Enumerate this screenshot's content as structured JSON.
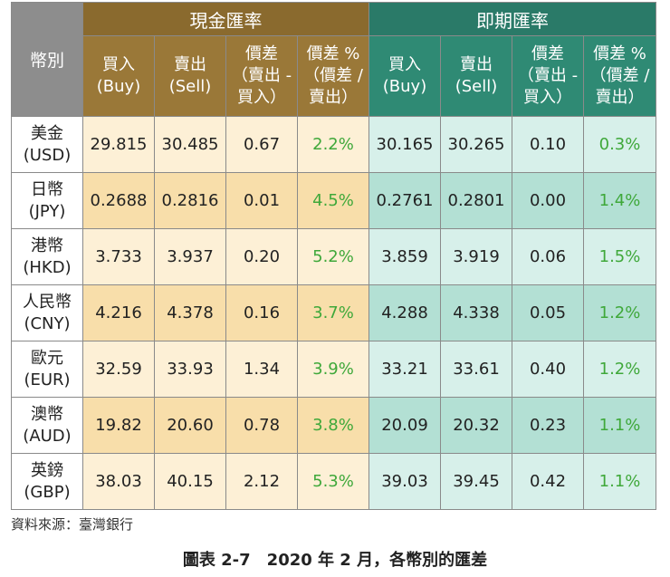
{
  "header": {
    "currency_label": "幣別",
    "cash_group": "現金匯率",
    "spot_group": "即期匯率",
    "columns": [
      {
        "line1": "買入",
        "line2": "(Buy)",
        "line3": ""
      },
      {
        "line1": "賣出",
        "line2": "(Sell)",
        "line3": ""
      },
      {
        "line1": "價差",
        "line2": "（賣出 -",
        "line3": "買入）"
      },
      {
        "line1": "價差 %",
        "line2": "（價差 /",
        "line3": "賣出）"
      }
    ]
  },
  "rows": [
    {
      "name": "美金",
      "code": "(USD)",
      "cash": [
        "29.815",
        "30.485",
        "0.67",
        "2.2%"
      ],
      "spot": [
        "30.165",
        "30.265",
        "0.10",
        "0.3%"
      ]
    },
    {
      "name": "日幣",
      "code": "(JPY)",
      "cash": [
        "0.2688",
        "0.2816",
        "0.01",
        "4.5%"
      ],
      "spot": [
        "0.2761",
        "0.2801",
        "0.00",
        "1.4%"
      ]
    },
    {
      "name": "港幣",
      "code": "(HKD)",
      "cash": [
        "3.733",
        "3.937",
        "0.20",
        "5.2%"
      ],
      "spot": [
        "3.859",
        "3.919",
        "0.06",
        "1.5%"
      ]
    },
    {
      "name": "人民幣",
      "code": "(CNY)",
      "cash": [
        "4.216",
        "4.378",
        "0.16",
        "3.7%"
      ],
      "spot": [
        "4.288",
        "4.338",
        "0.05",
        "1.2%"
      ]
    },
    {
      "name": "歐元",
      "code": "(EUR)",
      "cash": [
        "32.59",
        "33.93",
        "1.34",
        "3.9%"
      ],
      "spot": [
        "33.21",
        "33.61",
        "0.40",
        "1.2%"
      ]
    },
    {
      "name": "澳幣",
      "code": "(AUD)",
      "cash": [
        "19.82",
        "20.60",
        "0.78",
        "3.8%"
      ],
      "spot": [
        "20.09",
        "20.32",
        "0.23",
        "1.1%"
      ]
    },
    {
      "name": "英鎊",
      "code": "(GBP)",
      "cash": [
        "38.03",
        "40.15",
        "2.12",
        "5.3%"
      ],
      "spot": [
        "39.03",
        "39.45",
        "0.42",
        "1.1%"
      ]
    }
  ],
  "source": "資料來源：臺灣銀行",
  "caption": "圖表 2-7　2020 年 2 月，各幣別的匯差",
  "colors": {
    "cash_header": "#8a6a2e",
    "spot_header": "#2a7a68",
    "currency_header": "#8d8d8d",
    "cash_cell_light": "#fdf0d6",
    "cash_cell_dark": "#f8deaa",
    "spot_cell_light": "#d7f0ea",
    "spot_cell_dark": "#b3e0d4",
    "percent_text": "#3fa83a"
  }
}
